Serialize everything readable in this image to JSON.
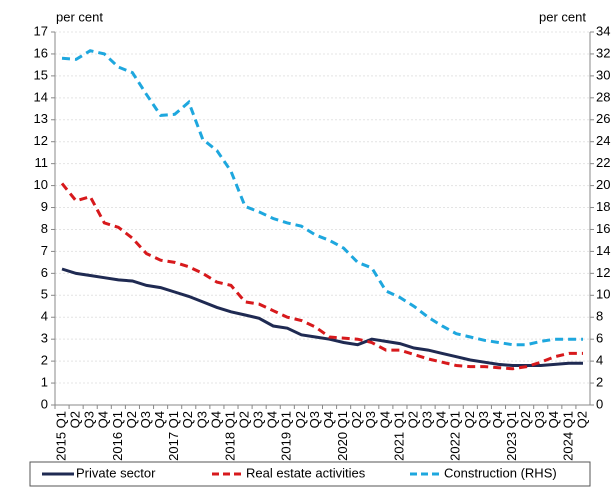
{
  "chart_data": {
    "type": "line",
    "ylabel": "per cent",
    "y2label": "per cent",
    "categories": [
      "2015 Q1",
      "Q2",
      "Q3",
      "Q4",
      "2016 Q1",
      "Q2",
      "Q3",
      "Q4",
      "2017 Q1",
      "Q2",
      "Q3",
      "Q4",
      "2018 Q1",
      "Q2",
      "Q3",
      "Q4",
      "2019 Q1",
      "Q2",
      "Q3",
      "Q4",
      "2020 Q1",
      "Q2",
      "Q3",
      "Q4",
      "2021 Q1",
      "Q2",
      "Q3",
      "Q4",
      "2022 Q1",
      "Q2",
      "Q3",
      "Q4",
      "2023 Q1",
      "Q2",
      "Q3",
      "Q4",
      "2024 Q1",
      "Q2"
    ],
    "series": [
      {
        "name": "Private sector",
        "color": "#1f2a52",
        "dash": "solid",
        "values": [
          6.2,
          6.0,
          5.9,
          5.8,
          5.7,
          5.65,
          5.45,
          5.35,
          5.15,
          4.95,
          4.7,
          4.45,
          4.25,
          4.1,
          3.95,
          3.6,
          3.5,
          3.2,
          3.1,
          3.0,
          2.85,
          2.75,
          3.0,
          2.9,
          2.8,
          2.6,
          2.5,
          2.35,
          2.2,
          2.05,
          1.95,
          1.85,
          1.8,
          1.8,
          1.8,
          1.85,
          1.9,
          1.9
        ]
      },
      {
        "name": "Real estate activities",
        "color": "#d7191c",
        "dash": "dashed",
        "values": [
          10.1,
          9.3,
          9.5,
          8.3,
          8.1,
          7.6,
          6.9,
          6.6,
          6.5,
          6.3,
          6.0,
          5.6,
          5.45,
          4.7,
          4.6,
          4.3,
          4.0,
          3.85,
          3.55,
          3.1,
          3.05,
          3.0,
          2.85,
          2.5,
          2.5,
          2.3,
          2.1,
          1.95,
          1.8,
          1.75,
          1.75,
          1.7,
          1.65,
          1.75,
          1.95,
          2.2,
          2.35,
          2.35
        ]
      },
      {
        "name": "Construction (RHS)",
        "color": "#1ea7de",
        "dash": "dashed",
        "axis": "y2",
        "values": [
          31.6,
          31.5,
          32.3,
          32.0,
          30.8,
          30.3,
          28.3,
          26.4,
          26.5,
          27.6,
          24.2,
          23.2,
          21.3,
          18.1,
          17.6,
          17.0,
          16.6,
          16.3,
          15.5,
          15.0,
          14.3,
          13.0,
          12.5,
          10.4,
          9.8,
          9.0,
          8.0,
          7.2,
          6.5,
          6.2,
          5.9,
          5.7,
          5.5,
          5.5,
          5.8,
          6.0,
          6.0,
          6.0
        ]
      }
    ],
    "ylim": [
      0,
      17
    ],
    "yticks": [
      0,
      1,
      2,
      3,
      4,
      5,
      6,
      7,
      8,
      9,
      10,
      11,
      12,
      13,
      14,
      15,
      16,
      17
    ],
    "y2lim": [
      0,
      34
    ],
    "y2ticks": [
      0,
      2,
      4,
      6,
      8,
      10,
      12,
      14,
      16,
      18,
      20,
      22,
      24,
      26,
      28,
      30,
      32,
      34
    ],
    "grid": true,
    "legend": "bottom"
  }
}
